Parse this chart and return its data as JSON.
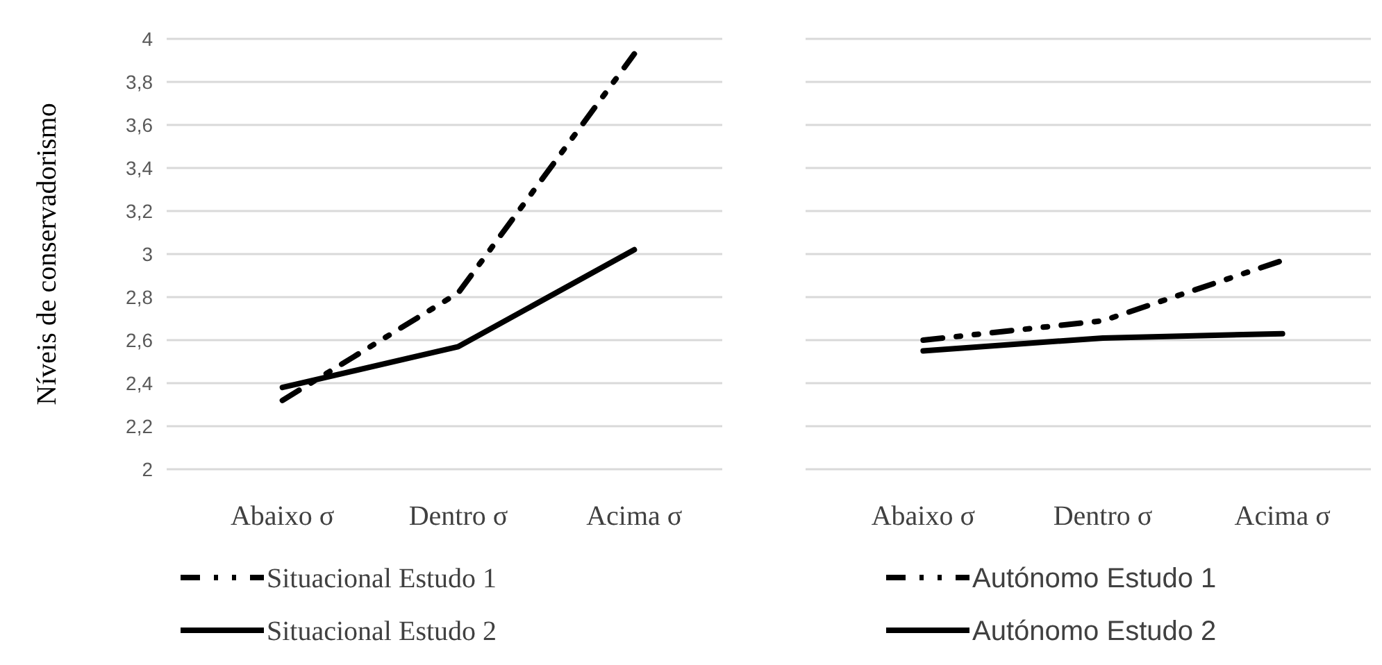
{
  "chart_data": [
    {
      "type": "line",
      "ylabel": "Níveis de conservadorismo",
      "categories": [
        "Abaixo σ",
        "Dentro σ",
        "Acima σ"
      ],
      "ylim": [
        2,
        4
      ],
      "yticks": [
        2,
        {
          "value": 2.2,
          "label": "2,2"
        },
        {
          "value": 2.4,
          "label": "2,4"
        },
        {
          "value": 2.6,
          "label": "2,6"
        },
        {
          "value": 2.8,
          "label": "2,8"
        },
        3,
        {
          "value": 3.2,
          "label": "3,2"
        },
        {
          "value": 3.4,
          "label": "3,4"
        },
        {
          "value": 3.6,
          "label": "3,6"
        },
        {
          "value": 3.8,
          "label": "3,8"
        },
        4
      ],
      "grid": "y",
      "legend": "bottom",
      "marker": "none",
      "series": [
        {
          "name": "Situacional Estudo 1",
          "color": "#000000",
          "line_style": "dashed",
          "values": [
            2.32,
            2.82,
            3.93
          ]
        },
        {
          "name": "Situacional Estudo 2",
          "color": "#000000",
          "line_style": "solid",
          "values": [
            2.38,
            2.57,
            3.02
          ]
        }
      ]
    },
    {
      "type": "line",
      "categories": [
        "Abaixo σ",
        "Dentro σ",
        "Acima σ"
      ],
      "ylim": [
        2,
        4
      ],
      "yticks": [
        2,
        2.2,
        2.4,
        2.6,
        2.8,
        3,
        3.2,
        3.4,
        3.6,
        3.8,
        4
      ],
      "tick_labels": "x",
      "grid": "y",
      "legend": "bottom",
      "marker": "none",
      "series": [
        {
          "name": "Autónomo Estudo 1",
          "color": "#000000",
          "line_style": "dashed",
          "values": [
            2.6,
            2.69,
            2.97
          ]
        },
        {
          "name": "Autónomo Estudo 2",
          "color": "#000000",
          "line_style": "solid",
          "values": [
            2.55,
            2.61,
            2.63
          ]
        }
      ]
    }
  ]
}
